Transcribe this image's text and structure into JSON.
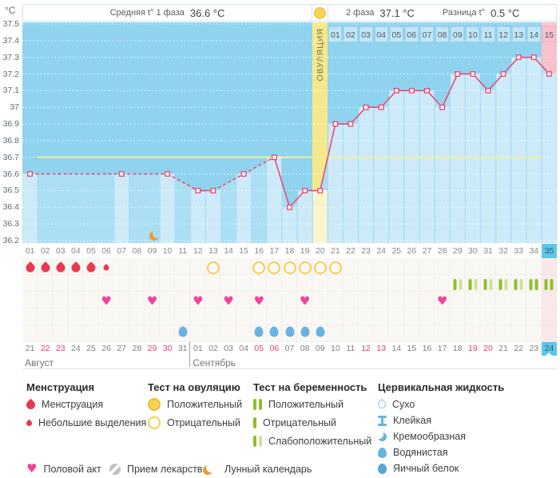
{
  "header": {
    "unit": "°C",
    "phase1_label": "Средняя t° 1 фаза",
    "phase1_value": "36.6 °C",
    "phase2_label": "2 фаза",
    "phase2_value": "37.1 °C",
    "diff_label": "Разница t°",
    "diff_value": "0.5 °C"
  },
  "chart_data": {
    "type": "line",
    "ylabel": "°C",
    "ylim": [
      36.2,
      37.5
    ],
    "yticks": [
      "37.5",
      "37.4",
      "37.3",
      "37.2",
      "37.1",
      "37",
      "36.9",
      "36.8",
      "36.7",
      "36.6",
      "36.5",
      "36.4",
      "36.3",
      "36.2"
    ],
    "days_total": 35,
    "coverline": 36.7,
    "ovulation": {
      "day": 20,
      "label": "ОВУЛЯЦИЯ"
    },
    "dpo_start_day": 21,
    "dpo_labels": [
      "01",
      "02",
      "03",
      "04",
      "05",
      "06",
      "07",
      "08",
      "09",
      "10",
      "11",
      "12",
      "13",
      "14",
      "15"
    ],
    "dpo_highlight_label": "15",
    "highlight_column_day": 35,
    "moon_day": 9,
    "series": [
      {
        "name": "Базальная температура",
        "points": [
          [
            1,
            36.6
          ],
          [
            7,
            36.6
          ],
          [
            10,
            36.6
          ],
          [
            12,
            36.5
          ],
          [
            13,
            36.5
          ],
          [
            15,
            36.6
          ],
          [
            17,
            36.7
          ],
          [
            18,
            36.4
          ],
          [
            19,
            36.5
          ],
          [
            20,
            36.5
          ],
          [
            21,
            36.9
          ],
          [
            22,
            36.9
          ],
          [
            23,
            37
          ],
          [
            24,
            37
          ],
          [
            25,
            37.1
          ],
          [
            26,
            37.1
          ],
          [
            27,
            37.1
          ],
          [
            28,
            37
          ],
          [
            29,
            37.2
          ],
          [
            30,
            37.2
          ],
          [
            31,
            37.1
          ],
          [
            32,
            37.2
          ],
          [
            33,
            37.3
          ],
          [
            34,
            37.3
          ],
          [
            35,
            37.2
          ]
        ]
      }
    ]
  },
  "grid": {
    "day_numbers": [
      "01",
      "02",
      "03",
      "04",
      "05",
      "06",
      "07",
      "08",
      "09",
      "10",
      "11",
      "12",
      "13",
      "14",
      "15",
      "16",
      "17",
      "18",
      "19",
      "20",
      "21",
      "22",
      "23",
      "24",
      "25",
      "26",
      "27",
      "28",
      "29",
      "30",
      "31",
      "32",
      "33",
      "34",
      "35"
    ],
    "current_day": 35,
    "menstruation_days": [
      1,
      2,
      3,
      4,
      5
    ],
    "spotting_days": [
      6
    ],
    "ovulation_test_negative_days": [
      13,
      16,
      17,
      18,
      19,
      20,
      21
    ],
    "pregnancy_test_weak_days": [
      29,
      30,
      31,
      32,
      33
    ],
    "pregnancy_test_positive_days": [
      34,
      35
    ],
    "intercourse_days": [
      6,
      9,
      12,
      14,
      16,
      19,
      28
    ],
    "cervical_watery_days": [
      11,
      16,
      17,
      18,
      19,
      20
    ],
    "dates": [
      "21",
      "22",
      "23",
      "24",
      "25",
      "26",
      "27",
      "28",
      "29",
      "30",
      "31",
      "01",
      "02",
      "03",
      "04",
      "05",
      "06",
      "07",
      "08",
      "09",
      "10",
      "11",
      "12",
      "13",
      "14",
      "15",
      "16",
      "17",
      "18",
      "19",
      "20",
      "21",
      "22",
      "23",
      "24"
    ],
    "weekend_day_indices": [
      2,
      3,
      9,
      10,
      16,
      17,
      23,
      24,
      30,
      31
    ],
    "months": [
      {
        "label": "Август",
        "start_day": 1
      },
      {
        "label": "Сентябрь",
        "start_day": 12
      }
    ]
  },
  "legend": {
    "columns": [
      {
        "title": "Менструация",
        "items": [
          {
            "icon": "drop",
            "label": "Менструация"
          },
          {
            "icon": "drop-small",
            "label": "Небольшие выделения"
          }
        ]
      },
      {
        "title": "Тест на овуляцию",
        "items": [
          {
            "icon": "circle-filled",
            "label": "Положительный"
          },
          {
            "icon": "circle-outline",
            "label": "Отрицательный"
          }
        ]
      },
      {
        "title": "Тест на беременность",
        "items": [
          {
            "icon": "bars-positive",
            "label": "Положительный"
          },
          {
            "icon": "bar-negative",
            "label": "Отрицательный"
          },
          {
            "icon": "bars-weak",
            "label": "Слабоположительный"
          }
        ]
      },
      {
        "title": "Цервикальная жидкость",
        "items": [
          {
            "icon": "drop-outline",
            "label": "Сухо"
          },
          {
            "icon": "sticky",
            "label": "Клейкая"
          },
          {
            "icon": "creamy",
            "label": "Кремообразная"
          },
          {
            "icon": "watery",
            "label": "Водянистая"
          },
          {
            "icon": "eggwhite",
            "label": "Яичный белок"
          }
        ]
      }
    ],
    "footer": [
      {
        "icon": "heart",
        "label": "Половой акт"
      },
      {
        "icon": "pill",
        "label": "Прием лекарств"
      },
      {
        "icon": "moon",
        "label": "Лунный календарь"
      }
    ]
  },
  "colors": {
    "chart_background": "#8fd3ee",
    "area_fill": "#abdef4",
    "bar_fill": "#cdeaf8",
    "ovulation_band": "#f5e88c",
    "ovulation_bar": "#fbf4ca",
    "dpo_cell": "#c2e6f5",
    "pink_highlight": "#f9c0cd",
    "temperature_line": "#ee4170",
    "coverline": "#f2eea4",
    "current_day_highlight": "#5cc7e8",
    "menstruation": "#e9384f",
    "intercourse_heart": "#f5429d",
    "ovulation_test": "#f2cf55",
    "ovulation_test_fill": "#f7d44e",
    "pregnancy_test": "#8fbe2b",
    "pregnancy_test_weak": "#cfe09d",
    "cervical_fluid": "#68b2e4",
    "moon": "#f19a2b",
    "weekend_date": "#ee3b70",
    "medication": "#bfbfbf"
  }
}
